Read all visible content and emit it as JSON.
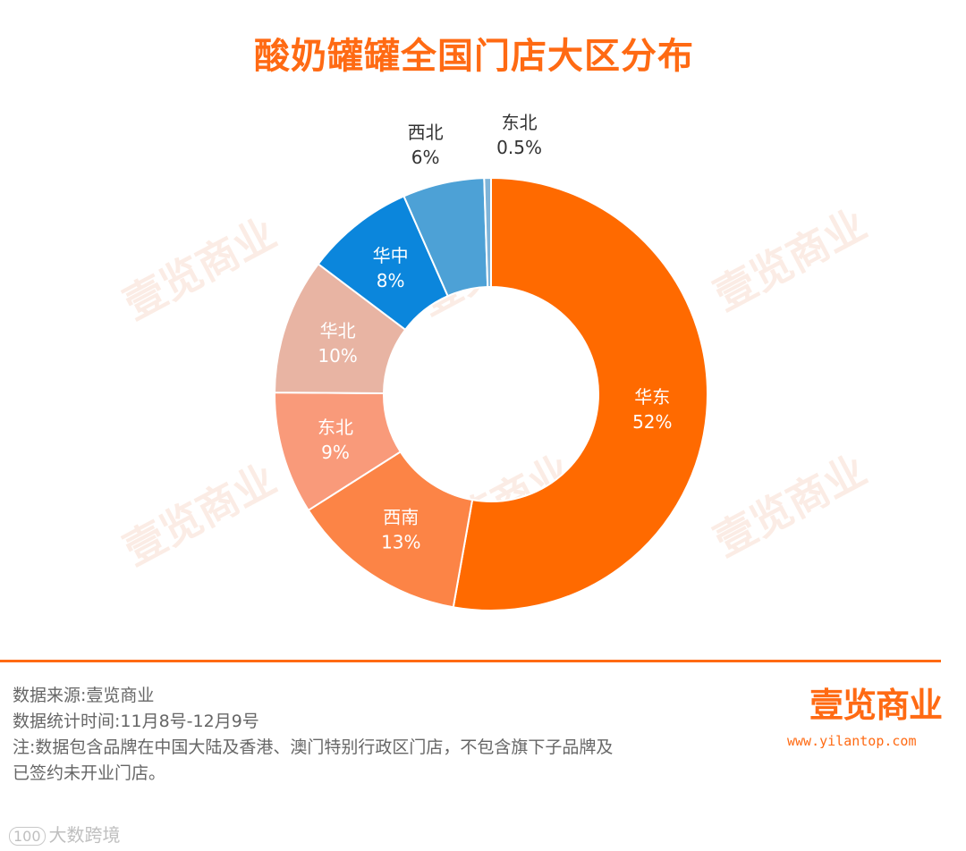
{
  "title": "酸奶罐罐全国门店大区分布",
  "watermark_text": "壹览商业",
  "chart_data": {
    "type": "pie",
    "donut": true,
    "title": "酸奶罐罐全国门店大区分布",
    "slices": [
      {
        "label": "华东",
        "value": 52,
        "value_label": "52%",
        "color": "#ff6a00"
      },
      {
        "label": "西南",
        "value": 13,
        "value_label": "13%",
        "color": "#fc8446"
      },
      {
        "label": "东北",
        "value": 9,
        "value_label": "9%",
        "color": "#f99a7a"
      },
      {
        "label": "华北",
        "value": 10,
        "value_label": "10%",
        "color": "#e8b4a3"
      },
      {
        "label": "华中",
        "value": 8,
        "value_label": "8%",
        "color": "#0b86dc"
      },
      {
        "label": "西北",
        "value": 6,
        "value_label": "6%",
        "color": "#4da1d6"
      },
      {
        "label": "东北",
        "value": 0.5,
        "value_label": "0.5%",
        "color": "#7fb4d8"
      }
    ]
  },
  "footer": {
    "source": "数据来源:壹览商业",
    "period": "数据统计时间:11月8号-12月9号",
    "note_line1": "注:数据包含品牌在中国大陆及香港、澳门特别行政区门店，不包含旗下子品牌及",
    "note_line2": "已签约未开业门店。"
  },
  "brand": {
    "logo_text": "壹览商业",
    "url": "www.yilantop.com"
  },
  "corner_watermark": {
    "icon_text": "100",
    "text": "大数跨境"
  }
}
